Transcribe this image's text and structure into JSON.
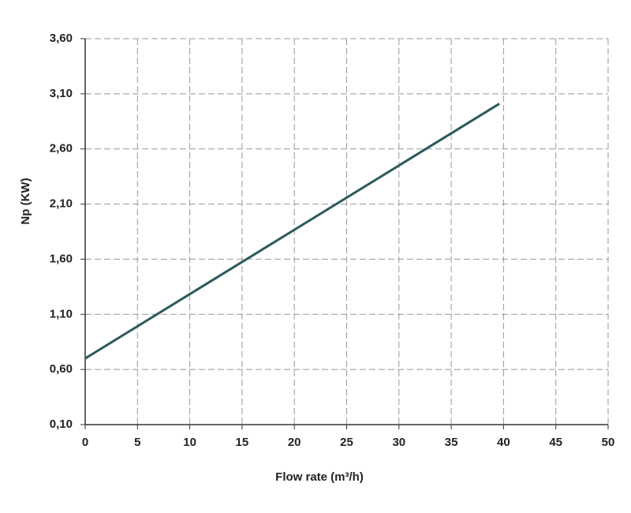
{
  "chart_data": {
    "type": "line",
    "x_label": "Flow rate (m³/h)",
    "y_label": "Np (KW)",
    "x": [
      0,
      39.6
    ],
    "series": [
      {
        "name": "Np",
        "color": "#2d5a5c",
        "values": [
          0.7,
          3.01
        ]
      }
    ],
    "xlim": [
      0,
      50
    ],
    "xticks": [
      0,
      5,
      10,
      15,
      20,
      25,
      30,
      35,
      40,
      45,
      50
    ],
    "ylim": [
      0.1,
      3.6
    ],
    "yticks": [
      {
        "value": 0.1,
        "label": "0,10"
      },
      {
        "value": 0.6,
        "label": "0,60"
      },
      {
        "value": 1.1,
        "label": "1,10"
      },
      {
        "value": 1.6,
        "label": "1,60"
      },
      {
        "value": 2.1,
        "label": "2,10"
      },
      {
        "value": 2.6,
        "label": "2,60"
      },
      {
        "value": 3.1,
        "label": "3,10"
      },
      {
        "value": 3.6,
        "label": "3,60"
      }
    ],
    "grid": true
  }
}
